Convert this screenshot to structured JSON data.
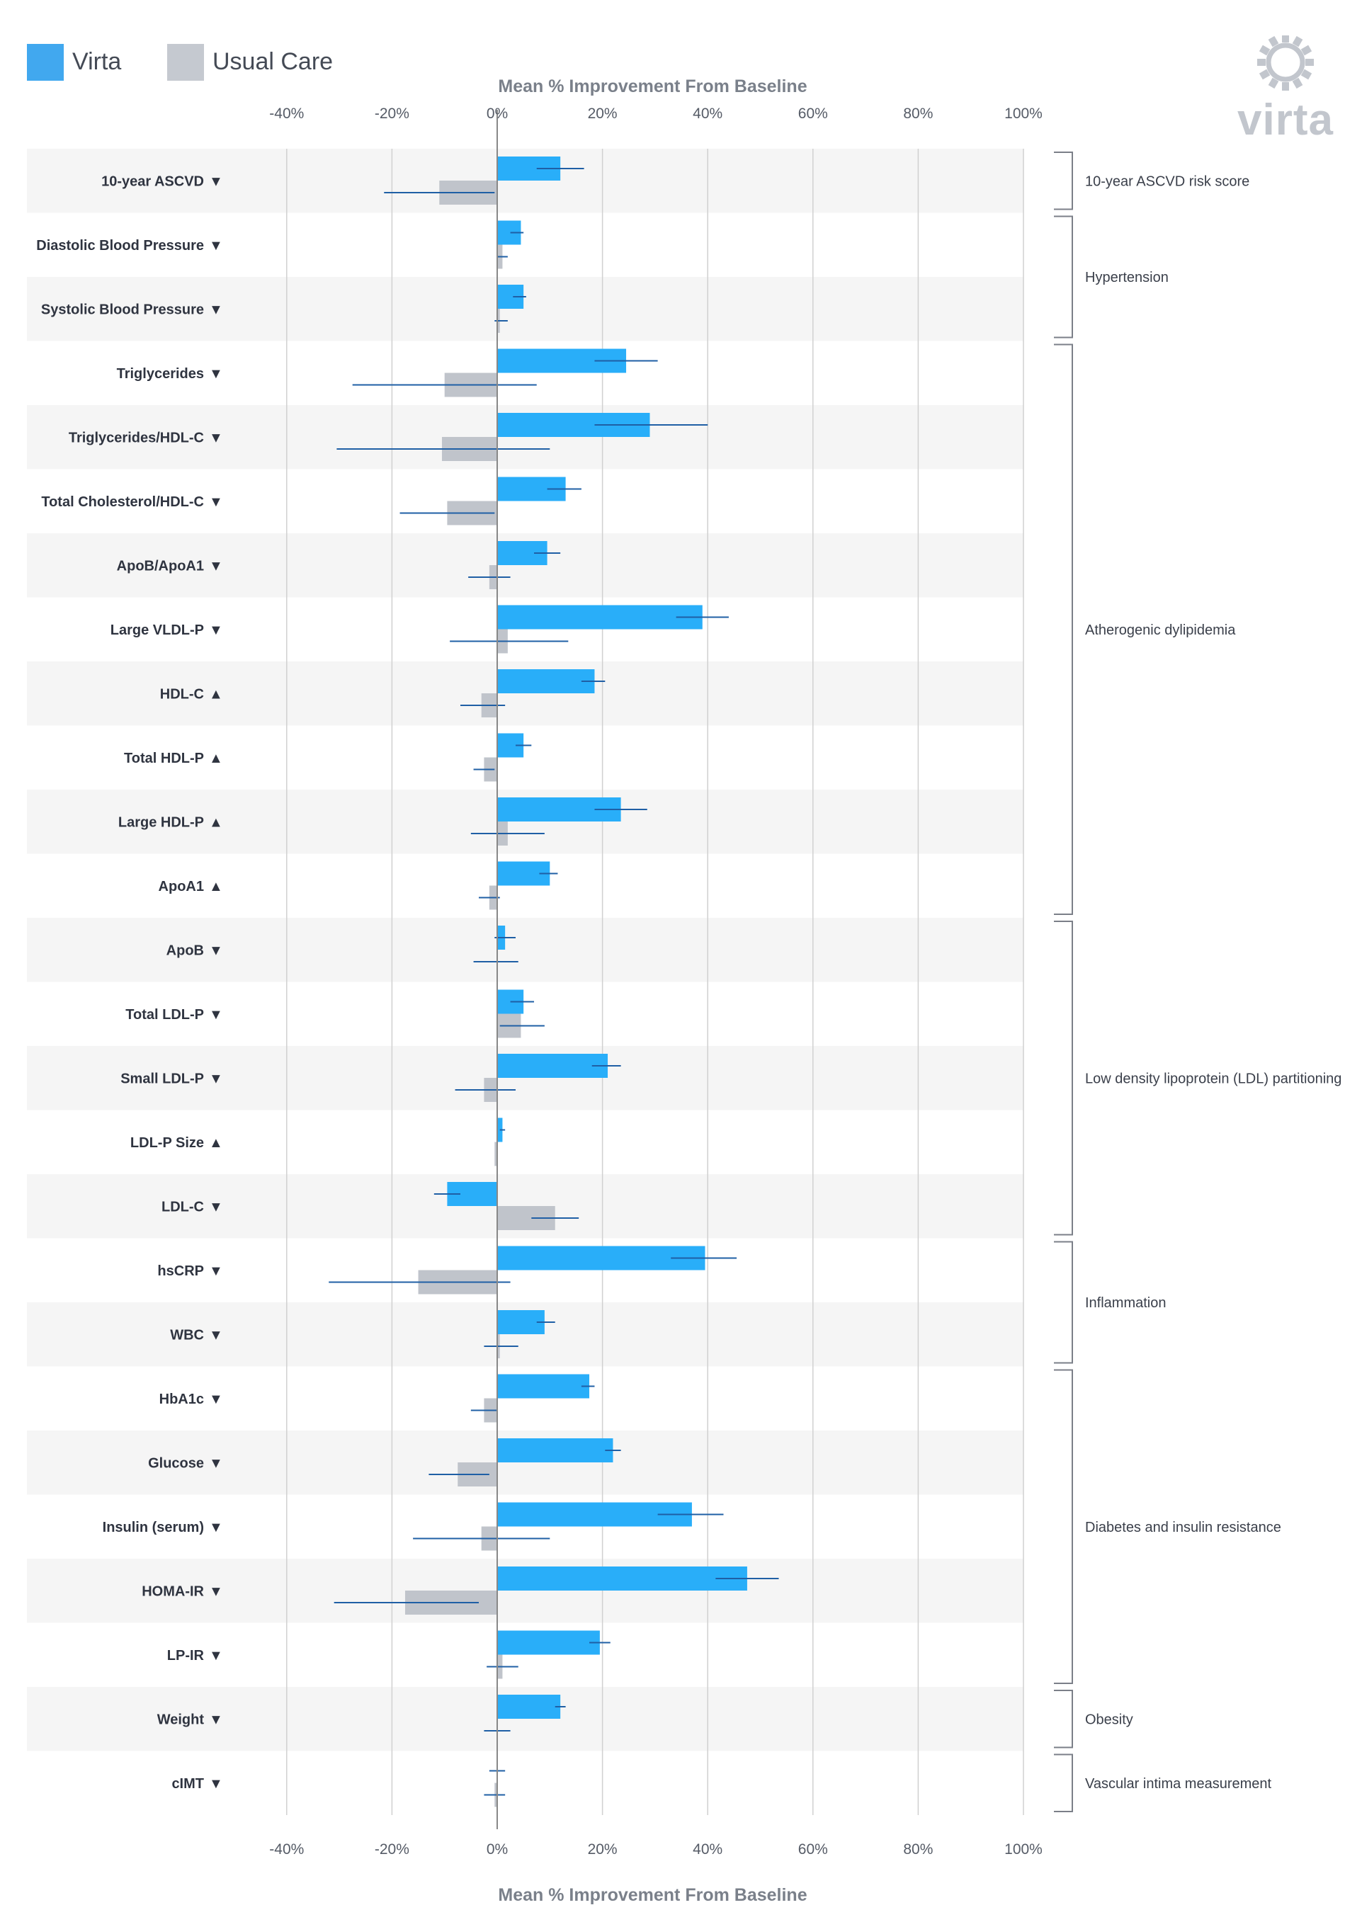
{
  "legend": {
    "items": [
      {
        "label": "Virta",
        "color": "#41a8ef"
      },
      {
        "label": "Usual Care",
        "color": "#c5c9d0"
      }
    ]
  },
  "logo": {
    "text": "virta",
    "color": "#c2c6cd"
  },
  "colors": {
    "virta_bar": "#29aef9",
    "usual_bar": "#c0c4cb",
    "error_bar": "#1f5fa5",
    "row_shade": "#f5f5f5",
    "grid": "#d0d0d0",
    "zero_line": "#888888",
    "bracket": "#7b7f88"
  },
  "chart_data": {
    "type": "bar",
    "orientation": "horizontal",
    "title": "",
    "xlabel": "Mean % Improvement From Baseline",
    "ylabel": "",
    "xlim": [
      -40,
      100
    ],
    "xticks": [
      -40,
      -20,
      0,
      20,
      40,
      60,
      80,
      100
    ],
    "xtick_labels": [
      "-40%",
      "-20%",
      "0%",
      "20%",
      "40%",
      "60%",
      "80%",
      "100%"
    ],
    "grid": true,
    "legend_position": "top-left",
    "categories": [
      {
        "label": "10-year ASCVD",
        "arrow": "▼"
      },
      {
        "label": "Diastolic Blood Pressure",
        "arrow": "▼"
      },
      {
        "label": "Systolic Blood Pressure",
        "arrow": "▼"
      },
      {
        "label": "Triglycerides",
        "arrow": "▼"
      },
      {
        "label": "Triglycerides/HDL-C",
        "arrow": "▼"
      },
      {
        "label": "Total Cholesterol/HDL-C",
        "arrow": "▼"
      },
      {
        "label": "ApoB/ApoA1",
        "arrow": "▼"
      },
      {
        "label": "Large VLDL-P",
        "arrow": "▼"
      },
      {
        "label": "HDL-C",
        "arrow": "▲"
      },
      {
        "label": "Total HDL-P",
        "arrow": "▲"
      },
      {
        "label": "Large HDL-P",
        "arrow": "▲"
      },
      {
        "label": "ApoA1",
        "arrow": "▲"
      },
      {
        "label": "ApoB",
        "arrow": "▼"
      },
      {
        "label": "Total LDL-P",
        "arrow": "▼"
      },
      {
        "label": "Small LDL-P",
        "arrow": "▼"
      },
      {
        "label": "LDL-P Size",
        "arrow": "▲"
      },
      {
        "label": "LDL-C",
        "arrow": "▼"
      },
      {
        "label": "hsCRP",
        "arrow": "▼"
      },
      {
        "label": "WBC",
        "arrow": "▼"
      },
      {
        "label": "HbA1c",
        "arrow": "▼"
      },
      {
        "label": "Glucose",
        "arrow": "▼"
      },
      {
        "label": "Insulin (serum)",
        "arrow": "▼"
      },
      {
        "label": "HOMA-IR",
        "arrow": "▼"
      },
      {
        "label": "LP-IR",
        "arrow": "▼"
      },
      {
        "label": "Weight",
        "arrow": "▼"
      },
      {
        "label": "cIMT",
        "arrow": "▼"
      }
    ],
    "series": [
      {
        "name": "Virta",
        "values": [
          12,
          4.5,
          5,
          24.5,
          29,
          13,
          9.5,
          39,
          18.5,
          5,
          23.5,
          10,
          1.5,
          5,
          21,
          1,
          -9.5,
          39.5,
          9,
          17.5,
          22,
          37,
          47.5,
          19.5,
          12,
          0
        ],
        "error_low": [
          7.5,
          2.5,
          3,
          18.5,
          18.5,
          9.5,
          7,
          34,
          16,
          3.5,
          18.5,
          8,
          -0.5,
          2.5,
          18,
          0.5,
          -12,
          33,
          7.5,
          16,
          20.5,
          30.5,
          41.5,
          17.5,
          11,
          -1.5
        ],
        "error_high": [
          16.5,
          5,
          5.5,
          30.5,
          40,
          16,
          12,
          44,
          20.5,
          6.5,
          28.5,
          11.5,
          3.5,
          7,
          23.5,
          1.5,
          -7,
          45.5,
          11,
          18.5,
          23.5,
          43,
          53.5,
          21.5,
          13,
          1.5
        ]
      },
      {
        "name": "Usual Care",
        "values": [
          -11,
          1,
          0.5,
          -10,
          -10.5,
          -9.5,
          -1.5,
          2,
          -3,
          -2.5,
          2,
          -1.5,
          0,
          4.5,
          -2.5,
          -0.5,
          11,
          -15,
          0.5,
          -2.5,
          -7.5,
          -3,
          -17.5,
          1,
          0,
          -0.5
        ],
        "error_low": [
          -21.5,
          0,
          -0.5,
          -27.5,
          -30.5,
          -18.5,
          -5.5,
          -9,
          -7,
          -4.5,
          -5,
          -3.5,
          -4.5,
          0.5,
          -8,
          -0.5,
          6.5,
          -32,
          -2.5,
          -5,
          -13,
          -16,
          -31,
          -2,
          -2.5,
          -2.5
        ],
        "error_high": [
          -0.5,
          2,
          2,
          7.5,
          10,
          -0.5,
          2.5,
          13.5,
          1.5,
          -0.5,
          9,
          0.5,
          4,
          9,
          3.5,
          -0.5,
          15.5,
          2.5,
          4,
          0,
          -1.5,
          10,
          -3.5,
          4,
          2.5,
          1.5
        ]
      }
    ],
    "groups": [
      {
        "label": "10-year ASCVD risk score",
        "start": 0,
        "end": 0
      },
      {
        "label": "Hypertension",
        "start": 1,
        "end": 2
      },
      {
        "label": "Atherogenic dylipidemia",
        "start": 3,
        "end": 11
      },
      {
        "label": "Low density lipoprotein (LDL) partitioning",
        "start": 12,
        "end": 16
      },
      {
        "label": "Inflammation",
        "start": 17,
        "end": 18
      },
      {
        "label": "Diabetes and insulin resistance",
        "start": 19,
        "end": 23
      },
      {
        "label": "Obesity",
        "start": 24,
        "end": 24
      },
      {
        "label": "Vascular intima measurement",
        "start": 25,
        "end": 25
      }
    ]
  }
}
